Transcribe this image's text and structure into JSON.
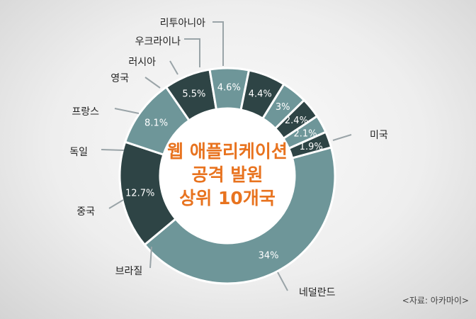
{
  "chart_data": {
    "type": "pie",
    "title_lines": [
      "웹 애플리케이션",
      "공격 발원",
      "상위 10개국"
    ],
    "source": "<자료: 아카마이>",
    "slices": [
      {
        "category": "미국",
        "value": 34,
        "label": "34%"
      },
      {
        "category": "네덜란드",
        "value": 12.7,
        "label": "12.7%"
      },
      {
        "category": "브라질",
        "value": 8.1,
        "label": "8.1%"
      },
      {
        "category": "중국",
        "value": 5.5,
        "label": "5.5%"
      },
      {
        "category": "독일",
        "value": 4.6,
        "label": "4.6%"
      },
      {
        "category": "프랑스",
        "value": 4.4,
        "label": "4.4%"
      },
      {
        "category": "영국",
        "value": 3,
        "label": "3%"
      },
      {
        "category": "러시아",
        "value": 2.4,
        "label": "2.4%"
      },
      {
        "category": "우크라이나",
        "value": 2.1,
        "label": "2.1%"
      },
      {
        "category": "리투아니아",
        "value": 1.9,
        "label": "1.9%"
      }
    ],
    "colors": {
      "light": "#6e9699",
      "dark": "#2e4445",
      "outline": "#ffffff",
      "leader": "#9aa4a8",
      "title": "#e8731f"
    }
  }
}
